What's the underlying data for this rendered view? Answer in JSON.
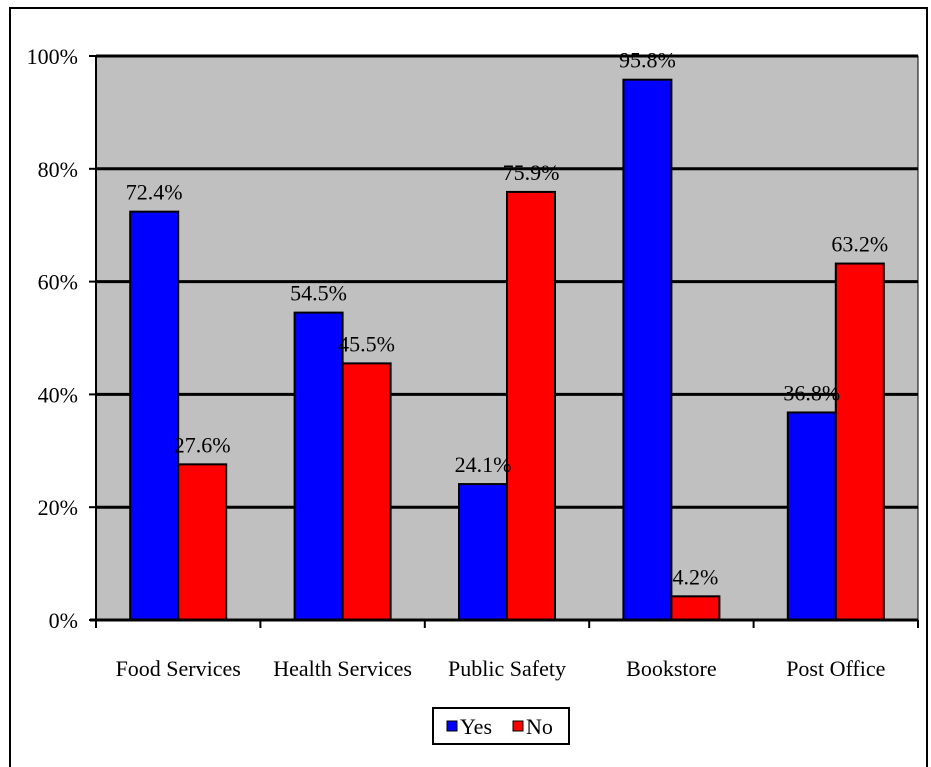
{
  "chart_data": {
    "type": "bar",
    "categories": [
      "Food Services",
      "Health Services",
      "Public Safety",
      "Bookstore",
      "Post Office"
    ],
    "series": [
      {
        "name": "Yes",
        "color": "#0000FF",
        "values": [
          72.4,
          54.5,
          24.1,
          95.8,
          36.8
        ]
      },
      {
        "name": "No",
        "color": "#FF0000",
        "values": [
          27.6,
          45.5,
          75.9,
          4.2,
          63.2
        ]
      }
    ],
    "data_labels": {
      "Yes": [
        "72.4%",
        "54.5%",
        "24.1%",
        "95.8%",
        "36.8%"
      ],
      "No": [
        "27.6%",
        "45.5%",
        "75.9%",
        "4.2%",
        "63.2%"
      ]
    },
    "ylim": [
      0,
      100
    ],
    "yticks": [
      0,
      20,
      40,
      60,
      80,
      100
    ],
    "ytick_labels": [
      "0%",
      "20%",
      "40%",
      "60%",
      "80%",
      "100%"
    ],
    "grid": true,
    "plot_background": "#C0C0C0",
    "legend_position": "bottom-center",
    "title": "",
    "xlabel": "",
    "ylabel": ""
  }
}
